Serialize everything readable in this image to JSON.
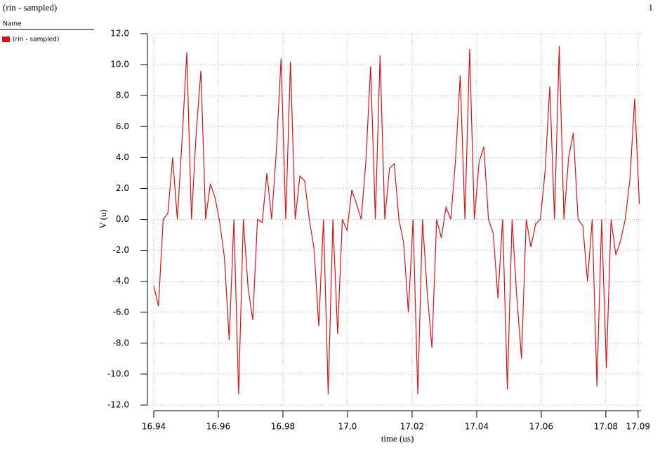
{
  "header": {
    "title": "(rin - sampled)",
    "page": "1"
  },
  "legend": {
    "header": "Name"
  },
  "chart_data": {
    "type": "line",
    "xlabel": "time (us)",
    "ylabel": "V (u)",
    "grid": true,
    "xlim": [
      16.94,
      17.0909
    ],
    "ylim": [
      -12,
      12
    ],
    "xticks": [
      16.94,
      16.96,
      16.98,
      {
        "value": 17,
        "label": "17.0"
      },
      17.02,
      17.04,
      17.06,
      17.08,
      17.09
    ],
    "yticks": [
      {
        "value": 12,
        "label": "12.0"
      },
      {
        "value": 10,
        "label": "10.0"
      },
      {
        "value": 8,
        "label": "8.0"
      },
      {
        "value": 6,
        "label": "6.0"
      },
      {
        "value": 4,
        "label": "4.0"
      },
      {
        "value": 2,
        "label": "2.0"
      },
      {
        "value": 0,
        "label": "0.0"
      },
      {
        "value": -2,
        "label": "-2.0"
      },
      {
        "value": -4,
        "label": "-4.0"
      },
      {
        "value": -6,
        "label": "-6.0"
      },
      {
        "value": -8,
        "label": "-8.0"
      },
      {
        "value": -10,
        "label": "-10.0"
      },
      {
        "value": -12,
        "label": "-12.0"
      }
    ],
    "x": [
      16.94,
      16.94146,
      16.94292,
      16.94438,
      16.94584,
      16.9473,
      16.94876,
      16.95022,
      16.95168,
      16.95314,
      16.9546,
      16.95606,
      16.95752,
      16.95898,
      16.96044,
      16.9619,
      16.96336,
      16.96482,
      16.96628,
      16.96774,
      16.9692,
      16.97066,
      16.97212,
      16.97358,
      16.97504,
      16.9765,
      16.97796,
      16.97942,
      16.98088,
      16.98234,
      16.9838,
      16.98526,
      16.98672,
      16.98818,
      16.98964,
      16.9911,
      16.99256,
      16.99402,
      16.99548,
      16.99694,
      16.9984,
      16.99986,
      17.00132,
      17.00278,
      17.00424,
      17.0057,
      17.00716,
      17.00862,
      17.01008,
      17.01154,
      17.013,
      17.01446,
      17.01592,
      17.01738,
      17.01884,
      17.0203,
      17.02176,
      17.02322,
      17.02468,
      17.02614,
      17.0276,
      17.02906,
      17.03052,
      17.03198,
      17.03344,
      17.0349,
      17.03636,
      17.03782,
      17.03928,
      17.04074,
      17.0422,
      17.04366,
      17.04512,
      17.04658,
      17.04804,
      17.0495,
      17.05096,
      17.05242,
      17.05388,
      17.05534,
      17.0568,
      17.05826,
      17.05972,
      17.06118,
      17.06264,
      17.0641,
      17.06556,
      17.06702,
      17.06848,
      17.06994,
      17.0714,
      17.07286,
      17.07432,
      17.07578,
      17.07724,
      17.0787,
      17.08016,
      17.08162,
      17.08308,
      17.08454,
      17.086,
      17.08746,
      17.08892,
      17.09038
    ],
    "series": [
      {
        "name": "(rin - sampled)",
        "color": "#dd1111",
        "values": [
          -4.3,
          -5.6,
          0,
          0.4,
          4.0,
          0,
          5.1,
          10.8,
          0,
          5.6,
          9.6,
          0,
          2.3,
          1.4,
          -0.2,
          -2.5,
          -7.8,
          0,
          -11.3,
          0,
          -4.4,
          -6.5,
          0,
          -0.2,
          3.0,
          0,
          4.4,
          10.4,
          0,
          10.2,
          0,
          2.8,
          2.5,
          0,
          -1.9,
          -6.9,
          0,
          -11.3,
          0,
          -7.4,
          0,
          -0.7,
          1.9,
          1.0,
          0,
          3.8,
          9.9,
          0,
          10.6,
          0,
          3.3,
          3.6,
          0,
          -1.5,
          -6.0,
          0,
          -11.3,
          0,
          -4.7,
          -8.3,
          0,
          -1.2,
          0.8,
          0,
          3.8,
          9.3,
          0,
          11.0,
          0,
          3.7,
          4.7,
          0,
          -0.9,
          -5.1,
          0,
          -11.0,
          0,
          -5.0,
          -9.0,
          0,
          -1.8,
          -0.3,
          0,
          3.1,
          8.6,
          0,
          11.2,
          0,
          4.0,
          5.6,
          0,
          -0.4,
          -4.0,
          0,
          -10.8,
          0,
          -9.6,
          0,
          -2.3,
          -1.4,
          0,
          2.6,
          7.8,
          1.0
        ]
      }
    ]
  }
}
